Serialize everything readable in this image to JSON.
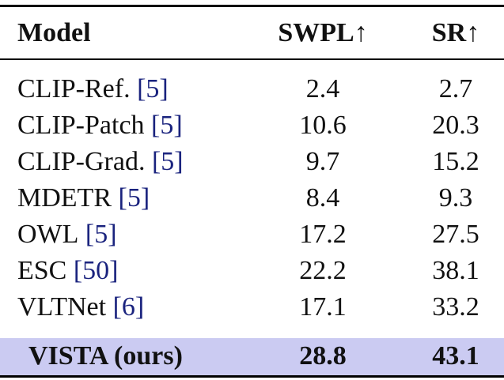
{
  "table": {
    "header": [
      "Model",
      "SWPL↑",
      "SR↑"
    ],
    "rows": [
      {
        "model": "CLIP-Ref.",
        "cite": "[5]",
        "swpl": 2.4,
        "sr": 2.7
      },
      {
        "model": "CLIP-Patch",
        "cite": "[5]",
        "swpl": 10.6,
        "sr": 20.3
      },
      {
        "model": "CLIP-Grad.",
        "cite": "[5]",
        "swpl": 9.7,
        "sr": 15.2
      },
      {
        "model": "MDETR",
        "cite": "[5]",
        "swpl": 8.4,
        "sr": 9.3
      },
      {
        "model": "OWL",
        "cite": "[5]",
        "swpl": 17.2,
        "sr": 27.5
      },
      {
        "model": "ESC",
        "cite": "[50]",
        "swpl": 22.2,
        "sr": 38.1
      },
      {
        "model": "VLTNet",
        "cite": "[6]",
        "swpl": 17.1,
        "sr": 33.2
      }
    ],
    "highlight": {
      "model": "VISTA (ours)",
      "swpl": 28.8,
      "sr": 43.1
    }
  }
}
